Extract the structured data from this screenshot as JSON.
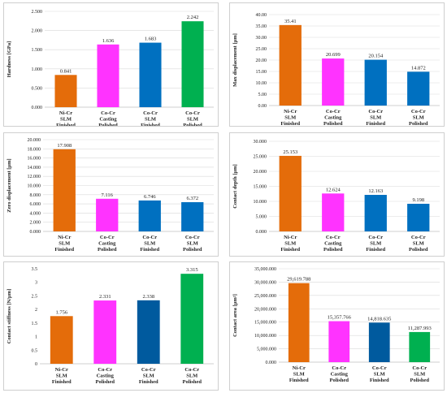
{
  "colors": {
    "orange": "#E46C0A",
    "magenta": "#FF33FF",
    "blue": "#0070C0",
    "darkblue": "#005A9E",
    "green": "#00B050",
    "grid": "#d9d9d9",
    "axis": "#bfbfbf"
  },
  "chart_data": [
    {
      "type": "bar",
      "ylabel": "Hardness [GPa]",
      "categories": [
        [
          "Ni-Cr",
          "SLM",
          "Finished"
        ],
        [
          "Co-Cr",
          "Casting",
          "Polished"
        ],
        [
          "Co-Cr",
          "SLM",
          "Finished"
        ],
        [
          "Co-Cr",
          "SLM",
          "Polished"
        ]
      ],
      "values": [
        0.841,
        1.636,
        1.683,
        2.242
      ],
      "value_labels": [
        "0.841",
        "1.636",
        "1.683",
        "2.242"
      ],
      "ylim": [
        0,
        2.5
      ],
      "ticks": [
        0,
        0.5,
        1,
        1.5,
        2,
        2.5
      ],
      "tick_labels": [
        "0.000",
        "0.500",
        "1.000",
        "1.500",
        "2.000",
        "2.500"
      ],
      "bar_colors": [
        "orange",
        "magenta",
        "blue",
        "green"
      ],
      "grid": true
    },
    {
      "type": "bar",
      "ylabel": "Max displacement [μm]",
      "categories": [
        [
          "Ni-Cr",
          "SLM",
          "Finished"
        ],
        [
          "Co-Cr",
          "Casting",
          "Polished"
        ],
        [
          "Co-Cr",
          "SLM",
          "Finished"
        ],
        [
          "Co-Cr",
          "SLM",
          "Polished"
        ]
      ],
      "values": [
        35.41,
        20.699,
        20.154,
        14.872
      ],
      "value_labels": [
        "35.41",
        "20.699",
        "20.154",
        "14.872"
      ],
      "ylim": [
        0,
        40
      ],
      "ticks": [
        0,
        5,
        10,
        15,
        20,
        25,
        30,
        35,
        40
      ],
      "tick_labels": [
        "0.00",
        "5.00",
        "10.00",
        "15.00",
        "20.00",
        "25.00",
        "30.00",
        "35.00",
        "40.00"
      ],
      "bar_colors": [
        "orange",
        "magenta",
        "blue",
        "blue"
      ],
      "grid": true
    },
    {
      "type": "bar",
      "ylabel": "Zero displacement [μm]",
      "categories": [
        [
          "Ni-Cr",
          "SLM",
          "Finished"
        ],
        [
          "Co-Cr",
          "Casting",
          "Polished"
        ],
        [
          "Co-Cr",
          "SLM",
          "Finished"
        ],
        [
          "Co-Cr",
          "SLM",
          "Polished"
        ]
      ],
      "values": [
        17.908,
        7.116,
        6.746,
        6.372
      ],
      "value_labels": [
        "17.908",
        "7.116",
        "6.746",
        "6.372"
      ],
      "ylim": [
        0,
        20
      ],
      "ticks": [
        0,
        2,
        4,
        6,
        8,
        10,
        12,
        14,
        16,
        18,
        20
      ],
      "tick_labels": [
        "0.000",
        "2.000",
        "4.000",
        "6.000",
        "8.000",
        "10.000",
        "12.000",
        "14.000",
        "16.000",
        "18.000",
        "20.000"
      ],
      "bar_colors": [
        "orange",
        "magenta",
        "blue",
        "blue"
      ],
      "grid": true
    },
    {
      "type": "bar",
      "ylabel": "Contact depth [μm]",
      "categories": [
        [
          "Ni-Cr",
          "SLM",
          "Finished"
        ],
        [
          "Co-Cr",
          "Casting",
          "Polished"
        ],
        [
          "Co-Cr",
          "SLM",
          "Finished"
        ],
        [
          "Co-Cr",
          "SLM",
          "Polished"
        ]
      ],
      "values": [
        25.153,
        12.624,
        12.163,
        9.198
      ],
      "value_labels": [
        "25.153",
        "12.624",
        "12.163",
        "9.198"
      ],
      "ylim": [
        0,
        30
      ],
      "ticks": [
        0,
        5,
        10,
        15,
        20,
        25,
        30
      ],
      "tick_labels": [
        "0.000",
        "5.000",
        "10.000",
        "15.000",
        "20.000",
        "25.000",
        "30.000"
      ],
      "bar_colors": [
        "orange",
        "magenta",
        "blue",
        "blue"
      ],
      "grid": true
    },
    {
      "type": "bar",
      "ylabel": "Contact stiffness [N/μm]",
      "categories": [
        [
          "Ni-Cr",
          "SLM",
          "Finished"
        ],
        [
          "Co-Cr",
          "Casting",
          "Polished"
        ],
        [
          "Co-Cr",
          "SLM",
          "Finished"
        ],
        [
          "Co-Cr",
          "SLM",
          "Polished"
        ]
      ],
      "values": [
        1.756,
        2.331,
        2.338,
        3.315
      ],
      "value_labels": [
        "1.756",
        "2.331",
        "2.338",
        "3.315"
      ],
      "ylim": [
        0,
        3.5
      ],
      "ticks": [
        0,
        0.5,
        1,
        1.5,
        2,
        2.5,
        3,
        3.5
      ],
      "tick_labels": [
        "0",
        "0.5",
        "1",
        "1.5",
        "2",
        "2.5",
        "3",
        "3.5"
      ],
      "bar_colors": [
        "orange",
        "magenta",
        "darkblue",
        "green"
      ],
      "grid": false
    },
    {
      "type": "bar",
      "ylabel": "Contact area [μm²]",
      "categories": [
        [
          "Ni-Cr",
          "SLM",
          "Finished"
        ],
        [
          "Co-Cr",
          "Casting",
          "Polished"
        ],
        [
          "Co-Cr",
          "SLM",
          "Finished"
        ],
        [
          "Co-Cr",
          "SLM",
          "Polished"
        ]
      ],
      "values": [
        29619.788,
        15357.766,
        14818.635,
        11287.993
      ],
      "value_labels": [
        "29,619.788",
        "15,357.766",
        "14,818.635",
        "11,287.993"
      ],
      "ylim": [
        0,
        35000
      ],
      "ticks": [
        0,
        5000,
        10000,
        15000,
        20000,
        25000,
        30000,
        35000
      ],
      "tick_labels": [
        "0.000",
        "5,000.000",
        "10,000.000",
        "15,000.000",
        "20,000.000",
        "25,000.000",
        "30,000.000",
        "35,000.000"
      ],
      "bar_colors": [
        "orange",
        "magenta",
        "darkblue",
        "green"
      ],
      "grid": true
    }
  ]
}
